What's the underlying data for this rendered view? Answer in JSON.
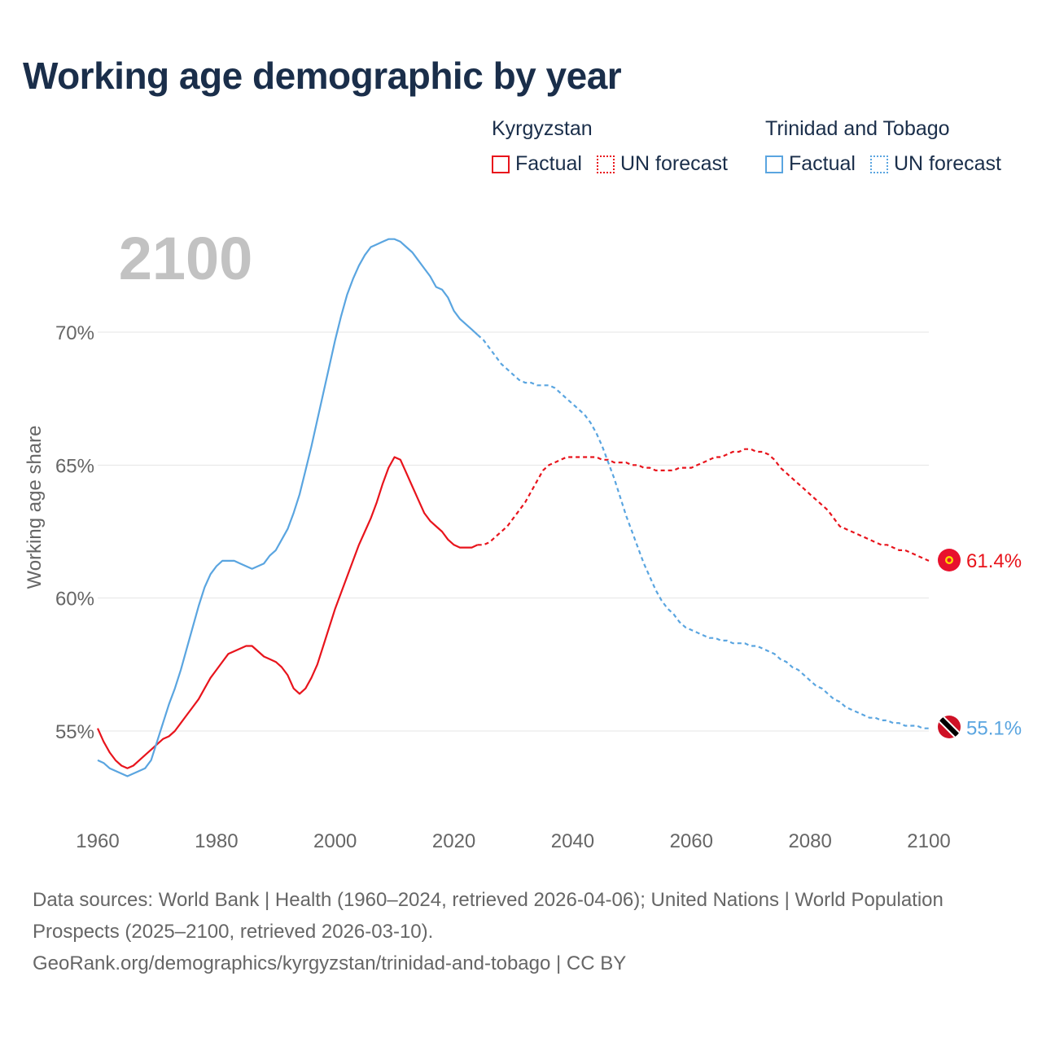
{
  "title": "Working age demographic by year",
  "year_watermark": "2100",
  "legend": {
    "groups": [
      {
        "name": "Kyrgyzstan",
        "color": "#e8141c",
        "factual": "Factual",
        "forecast": "UN forecast"
      },
      {
        "name": "Trinidad and Tobago",
        "color": "#5aa5e0",
        "factual": "Factual",
        "forecast": "UN forecast"
      }
    ]
  },
  "footer": {
    "line1": "Data sources: World Bank | Health (1960–2024, retrieved 2026-04-06); United Nations | World Population Prospects (2025–2100, retrieved 2026-03-10).",
    "line2": "GeoRank.org/demographics/kyrgyzstan/trinidad-and-tobago | CC BY"
  },
  "chart_data": {
    "type": "line",
    "title": "Working age demographic by year",
    "xlabel": "",
    "ylabel": "Working age share",
    "xlim": [
      1960,
      2100
    ],
    "ylim": [
      51.5,
      74
    ],
    "x_ticks": [
      1960,
      1980,
      2000,
      2020,
      2040,
      2060,
      2080,
      2100
    ],
    "y_ticks": [
      55,
      60,
      65,
      70
    ],
    "y_tick_labels": [
      "55%",
      "60%",
      "65%",
      "70%"
    ],
    "grid": true,
    "forecast_start": 2025,
    "series": [
      {
        "name": "Kyrgyzstan",
        "color": "#e8141c",
        "end_label": "61.4%",
        "points": [
          [
            1960,
            55.1
          ],
          [
            1961,
            54.6
          ],
          [
            1962,
            54.2
          ],
          [
            1963,
            53.9
          ],
          [
            1964,
            53.7
          ],
          [
            1965,
            53.6
          ],
          [
            1966,
            53.7
          ],
          [
            1967,
            53.9
          ],
          [
            1968,
            54.1
          ],
          [
            1969,
            54.3
          ],
          [
            1970,
            54.5
          ],
          [
            1971,
            54.7
          ],
          [
            1972,
            54.8
          ],
          [
            1973,
            55.0
          ],
          [
            1974,
            55.3
          ],
          [
            1975,
            55.6
          ],
          [
            1976,
            55.9
          ],
          [
            1977,
            56.2
          ],
          [
            1978,
            56.6
          ],
          [
            1979,
            57.0
          ],
          [
            1980,
            57.3
          ],
          [
            1981,
            57.6
          ],
          [
            1982,
            57.9
          ],
          [
            1983,
            58.0
          ],
          [
            1984,
            58.1
          ],
          [
            1985,
            58.2
          ],
          [
            1986,
            58.2
          ],
          [
            1987,
            58.0
          ],
          [
            1988,
            57.8
          ],
          [
            1989,
            57.7
          ],
          [
            1990,
            57.6
          ],
          [
            1991,
            57.4
          ],
          [
            1992,
            57.1
          ],
          [
            1993,
            56.6
          ],
          [
            1994,
            56.4
          ],
          [
            1995,
            56.6
          ],
          [
            1996,
            57.0
          ],
          [
            1997,
            57.5
          ],
          [
            1998,
            58.2
          ],
          [
            1999,
            58.9
          ],
          [
            2000,
            59.6
          ],
          [
            2001,
            60.2
          ],
          [
            2002,
            60.8
          ],
          [
            2003,
            61.4
          ],
          [
            2004,
            62.0
          ],
          [
            2005,
            62.5
          ],
          [
            2006,
            63.0
          ],
          [
            2007,
            63.6
          ],
          [
            2008,
            64.3
          ],
          [
            2009,
            64.9
          ],
          [
            2010,
            65.3
          ],
          [
            2011,
            65.2
          ],
          [
            2012,
            64.7
          ],
          [
            2013,
            64.2
          ],
          [
            2014,
            63.7
          ],
          [
            2015,
            63.2
          ],
          [
            2016,
            62.9
          ],
          [
            2017,
            62.7
          ],
          [
            2018,
            62.5
          ],
          [
            2019,
            62.2
          ],
          [
            2020,
            62.0
          ],
          [
            2021,
            61.9
          ],
          [
            2022,
            61.9
          ],
          [
            2023,
            61.9
          ],
          [
            2024,
            62.0
          ],
          [
            2025,
            62.0
          ],
          [
            2026,
            62.1
          ],
          [
            2027,
            62.3
          ],
          [
            2028,
            62.5
          ],
          [
            2029,
            62.7
          ],
          [
            2030,
            63.0
          ],
          [
            2031,
            63.3
          ],
          [
            2032,
            63.6
          ],
          [
            2033,
            64.0
          ],
          [
            2034,
            64.4
          ],
          [
            2035,
            64.8
          ],
          [
            2036,
            65.0
          ],
          [
            2037,
            65.1
          ],
          [
            2038,
            65.2
          ],
          [
            2039,
            65.3
          ],
          [
            2040,
            65.3
          ],
          [
            2041,
            65.3
          ],
          [
            2042,
            65.3
          ],
          [
            2043,
            65.3
          ],
          [
            2044,
            65.3
          ],
          [
            2045,
            65.2
          ],
          [
            2046,
            65.2
          ],
          [
            2047,
            65.1
          ],
          [
            2048,
            65.1
          ],
          [
            2049,
            65.1
          ],
          [
            2050,
            65.0
          ],
          [
            2051,
            65.0
          ],
          [
            2052,
            64.9
          ],
          [
            2053,
            64.9
          ],
          [
            2054,
            64.8
          ],
          [
            2055,
            64.8
          ],
          [
            2056,
            64.8
          ],
          [
            2057,
            64.8
          ],
          [
            2058,
            64.9
          ],
          [
            2059,
            64.9
          ],
          [
            2060,
            64.9
          ],
          [
            2061,
            65.0
          ],
          [
            2062,
            65.1
          ],
          [
            2063,
            65.2
          ],
          [
            2064,
            65.3
          ],
          [
            2065,
            65.3
          ],
          [
            2066,
            65.4
          ],
          [
            2067,
            65.5
          ],
          [
            2068,
            65.5
          ],
          [
            2069,
            65.6
          ],
          [
            2070,
            65.6
          ],
          [
            2071,
            65.5
          ],
          [
            2072,
            65.5
          ],
          [
            2073,
            65.4
          ],
          [
            2074,
            65.2
          ],
          [
            2075,
            64.9
          ],
          [
            2076,
            64.7
          ],
          [
            2077,
            64.5
          ],
          [
            2078,
            64.3
          ],
          [
            2079,
            64.1
          ],
          [
            2080,
            63.9
          ],
          [
            2081,
            63.7
          ],
          [
            2082,
            63.5
          ],
          [
            2083,
            63.3
          ],
          [
            2084,
            63.0
          ],
          [
            2085,
            62.7
          ],
          [
            2086,
            62.6
          ],
          [
            2087,
            62.5
          ],
          [
            2088,
            62.4
          ],
          [
            2089,
            62.3
          ],
          [
            2090,
            62.2
          ],
          [
            2091,
            62.1
          ],
          [
            2092,
            62.0
          ],
          [
            2093,
            62.0
          ],
          [
            2094,
            61.9
          ],
          [
            2095,
            61.8
          ],
          [
            2096,
            61.8
          ],
          [
            2097,
            61.7
          ],
          [
            2098,
            61.6
          ],
          [
            2099,
            61.5
          ],
          [
            2100,
            61.4
          ]
        ]
      },
      {
        "name": "Trinidad and Tobago",
        "color": "#5aa5e0",
        "end_label": "55.1%",
        "points": [
          [
            1960,
            53.9
          ],
          [
            1961,
            53.8
          ],
          [
            1962,
            53.6
          ],
          [
            1963,
            53.5
          ],
          [
            1964,
            53.4
          ],
          [
            1965,
            53.3
          ],
          [
            1966,
            53.4
          ],
          [
            1967,
            53.5
          ],
          [
            1968,
            53.6
          ],
          [
            1969,
            53.9
          ],
          [
            1970,
            54.6
          ],
          [
            1971,
            55.3
          ],
          [
            1972,
            56.0
          ],
          [
            1973,
            56.6
          ],
          [
            1974,
            57.3
          ],
          [
            1975,
            58.1
          ],
          [
            1976,
            58.9
          ],
          [
            1977,
            59.7
          ],
          [
            1978,
            60.4
          ],
          [
            1979,
            60.9
          ],
          [
            1980,
            61.2
          ],
          [
            1981,
            61.4
          ],
          [
            1982,
            61.4
          ],
          [
            1983,
            61.4
          ],
          [
            1984,
            61.3
          ],
          [
            1985,
            61.2
          ],
          [
            1986,
            61.1
          ],
          [
            1987,
            61.2
          ],
          [
            1988,
            61.3
          ],
          [
            1989,
            61.6
          ],
          [
            1990,
            61.8
          ],
          [
            1991,
            62.2
          ],
          [
            1992,
            62.6
          ],
          [
            1993,
            63.2
          ],
          [
            1994,
            63.9
          ],
          [
            1995,
            64.8
          ],
          [
            1996,
            65.7
          ],
          [
            1997,
            66.7
          ],
          [
            1998,
            67.7
          ],
          [
            1999,
            68.7
          ],
          [
            2000,
            69.7
          ],
          [
            2001,
            70.6
          ],
          [
            2002,
            71.4
          ],
          [
            2003,
            72.0
          ],
          [
            2004,
            72.5
          ],
          [
            2005,
            72.9
          ],
          [
            2006,
            73.2
          ],
          [
            2007,
            73.3
          ],
          [
            2008,
            73.4
          ],
          [
            2009,
            73.5
          ],
          [
            2010,
            73.5
          ],
          [
            2011,
            73.4
          ],
          [
            2012,
            73.2
          ],
          [
            2013,
            73.0
          ],
          [
            2014,
            72.7
          ],
          [
            2015,
            72.4
          ],
          [
            2016,
            72.1
          ],
          [
            2017,
            71.7
          ],
          [
            2018,
            71.6
          ],
          [
            2019,
            71.3
          ],
          [
            2020,
            70.8
          ],
          [
            2021,
            70.5
          ],
          [
            2022,
            70.3
          ],
          [
            2023,
            70.1
          ],
          [
            2024,
            69.9
          ],
          [
            2025,
            69.7
          ],
          [
            2026,
            69.4
          ],
          [
            2027,
            69.1
          ],
          [
            2028,
            68.8
          ],
          [
            2029,
            68.6
          ],
          [
            2030,
            68.4
          ],
          [
            2031,
            68.2
          ],
          [
            2032,
            68.1
          ],
          [
            2033,
            68.1
          ],
          [
            2034,
            68.0
          ],
          [
            2035,
            68.0
          ],
          [
            2036,
            68.0
          ],
          [
            2037,
            67.9
          ],
          [
            2038,
            67.7
          ],
          [
            2039,
            67.5
          ],
          [
            2040,
            67.3
          ],
          [
            2041,
            67.1
          ],
          [
            2042,
            66.9
          ],
          [
            2043,
            66.6
          ],
          [
            2044,
            66.2
          ],
          [
            2045,
            65.7
          ],
          [
            2046,
            65.1
          ],
          [
            2047,
            64.5
          ],
          [
            2048,
            63.8
          ],
          [
            2049,
            63.1
          ],
          [
            2050,
            62.5
          ],
          [
            2051,
            61.9
          ],
          [
            2052,
            61.3
          ],
          [
            2053,
            60.8
          ],
          [
            2054,
            60.3
          ],
          [
            2055,
            59.9
          ],
          [
            2056,
            59.6
          ],
          [
            2057,
            59.4
          ],
          [
            2058,
            59.1
          ],
          [
            2059,
            58.9
          ],
          [
            2060,
            58.8
          ],
          [
            2061,
            58.7
          ],
          [
            2062,
            58.6
          ],
          [
            2063,
            58.5
          ],
          [
            2064,
            58.5
          ],
          [
            2065,
            58.4
          ],
          [
            2066,
            58.4
          ],
          [
            2067,
            58.3
          ],
          [
            2068,
            58.3
          ],
          [
            2069,
            58.3
          ],
          [
            2070,
            58.2
          ],
          [
            2071,
            58.2
          ],
          [
            2072,
            58.1
          ],
          [
            2073,
            58.0
          ],
          [
            2074,
            57.9
          ],
          [
            2075,
            57.7
          ],
          [
            2076,
            57.6
          ],
          [
            2077,
            57.4
          ],
          [
            2078,
            57.3
          ],
          [
            2079,
            57.1
          ],
          [
            2080,
            56.9
          ],
          [
            2081,
            56.7
          ],
          [
            2082,
            56.6
          ],
          [
            2083,
            56.4
          ],
          [
            2084,
            56.2
          ],
          [
            2085,
            56.1
          ],
          [
            2086,
            55.9
          ],
          [
            2087,
            55.8
          ],
          [
            2088,
            55.7
          ],
          [
            2089,
            55.6
          ],
          [
            2090,
            55.5
          ],
          [
            2091,
            55.5
          ],
          [
            2092,
            55.4
          ],
          [
            2093,
            55.4
          ],
          [
            2094,
            55.3
          ],
          [
            2095,
            55.3
          ],
          [
            2096,
            55.2
          ],
          [
            2097,
            55.2
          ],
          [
            2098,
            55.2
          ],
          [
            2099,
            55.1
          ],
          [
            2100,
            55.1
          ]
        ]
      }
    ]
  }
}
